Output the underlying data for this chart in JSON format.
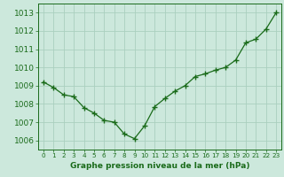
{
  "x": [
    0,
    1,
    2,
    3,
    4,
    5,
    6,
    7,
    8,
    9,
    10,
    11,
    12,
    13,
    14,
    15,
    16,
    17,
    18,
    19,
    20,
    21,
    22,
    23
  ],
  "y": [
    1009.2,
    1008.9,
    1008.5,
    1008.4,
    1007.8,
    1007.5,
    1007.1,
    1007.0,
    1006.35,
    1006.1,
    1006.8,
    1007.85,
    1008.3,
    1008.7,
    1009.0,
    1009.5,
    1009.65,
    1009.85,
    1010.0,
    1010.4,
    1011.35,
    1011.55,
    1012.1,
    1013.0
  ],
  "line_color": "#1a6b1a",
  "marker": "+",
  "bg_color": "#cce8dc",
  "grid_color": "#aacfbf",
  "xlabel": "Graphe pression niveau de la mer (hPa)",
  "xlabel_color": "#1a6b1a",
  "tick_color": "#1a6b1a",
  "ylim_min": 1005.5,
  "ylim_max": 1013.5,
  "ytick_values": [
    1006,
    1007,
    1008,
    1009,
    1010,
    1011,
    1012,
    1013
  ],
  "xtick_labels": [
    "0",
    "1",
    "2",
    "3",
    "4",
    "5",
    "6",
    "7",
    "8",
    "9",
    "10",
    "11",
    "12",
    "13",
    "14",
    "15",
    "16",
    "17",
    "18",
    "19",
    "20",
    "21",
    "22",
    "23"
  ]
}
